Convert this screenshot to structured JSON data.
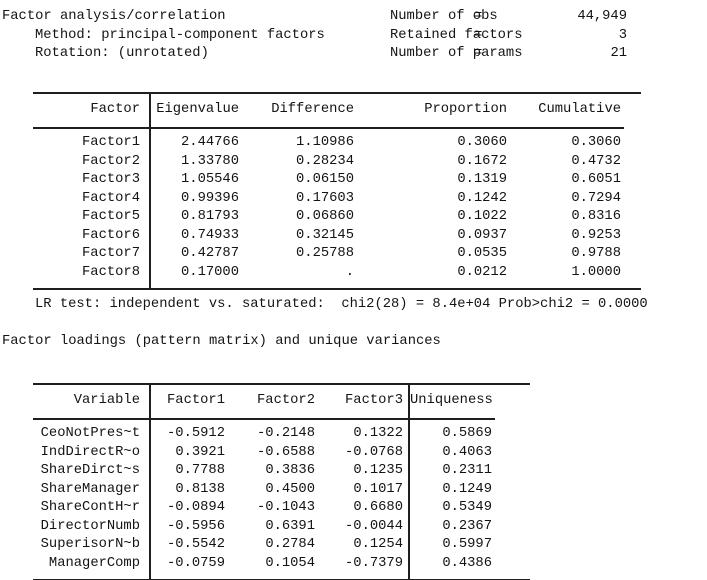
{
  "header": {
    "title": "Factor analysis/correlation",
    "method": "Method: principal-component factors",
    "rotation": "Rotation: (unrotated)",
    "stats": [
      {
        "label": "Number of obs",
        "eq": "=",
        "value": "44,949"
      },
      {
        "label": "Retained factors",
        "eq": "=",
        "value": "3"
      },
      {
        "label": "Number of params",
        "eq": "=",
        "value": "21"
      }
    ]
  },
  "eigen_table": {
    "columns": [
      "Factor",
      "Eigenvalue",
      "Difference",
      "Proportion",
      "Cumulative"
    ],
    "rows": [
      {
        "factor": "Factor1",
        "eigenvalue": "2.44766",
        "difference": "1.10986",
        "proportion": "0.3060",
        "cumulative": "0.3060"
      },
      {
        "factor": "Factor2",
        "eigenvalue": "1.33780",
        "difference": "0.28234",
        "proportion": "0.1672",
        "cumulative": "0.4732"
      },
      {
        "factor": "Factor3",
        "eigenvalue": "1.05546",
        "difference": "0.06150",
        "proportion": "0.1319",
        "cumulative": "0.6051"
      },
      {
        "factor": "Factor4",
        "eigenvalue": "0.99396",
        "difference": "0.17603",
        "proportion": "0.1242",
        "cumulative": "0.7294"
      },
      {
        "factor": "Factor5",
        "eigenvalue": "0.81793",
        "difference": "0.06860",
        "proportion": "0.1022",
        "cumulative": "0.8316"
      },
      {
        "factor": "Factor6",
        "eigenvalue": "0.74933",
        "difference": "0.32145",
        "proportion": "0.0937",
        "cumulative": "0.9253"
      },
      {
        "factor": "Factor7",
        "eigenvalue": "0.42787",
        "difference": "0.25788",
        "proportion": "0.0535",
        "cumulative": "0.9788"
      },
      {
        "factor": "Factor8",
        "eigenvalue": "0.17000",
        "difference": ".",
        "proportion": "0.0212",
        "cumulative": "1.0000"
      }
    ]
  },
  "lr_test": "LR test: independent vs. saturated:  chi2(28) = 8.4e+04 Prob>chi2 = 0.0000",
  "loadings": {
    "caption": "Factor loadings (pattern matrix) and unique variances",
    "columns": [
      "Variable",
      "Factor1",
      "Factor2",
      "Factor3",
      "Uniqueness"
    ],
    "rows": [
      {
        "variable": "CeoNotPres~t",
        "f1": "-0.5912",
        "f2": "-0.2148",
        "f3": "0.1322",
        "uniqueness": "0.5869"
      },
      {
        "variable": "IndDirectR~o",
        "f1": "0.3921",
        "f2": "-0.6588",
        "f3": "-0.0768",
        "uniqueness": "0.4063"
      },
      {
        "variable": "ShareDirct~s",
        "f1": "0.7788",
        "f2": "0.3836",
        "f3": "0.1235",
        "uniqueness": "0.2311"
      },
      {
        "variable": "ShareManager",
        "f1": "0.8138",
        "f2": "0.4500",
        "f3": "0.1017",
        "uniqueness": "0.1249"
      },
      {
        "variable": "ShareContH~r",
        "f1": "-0.0894",
        "f2": "-0.1043",
        "f3": "0.6680",
        "uniqueness": "0.5349"
      },
      {
        "variable": "DirectorNumb",
        "f1": "-0.5956",
        "f2": "0.6391",
        "f3": "-0.0044",
        "uniqueness": "0.2367"
      },
      {
        "variable": "SuperisorN~b",
        "f1": "-0.5542",
        "f2": "0.2784",
        "f3": "0.1254",
        "uniqueness": "0.5997"
      },
      {
        "variable": "ManagerComp",
        "f1": "-0.0759",
        "f2": "0.1054",
        "f3": "-0.7379",
        "uniqueness": "0.4386"
      }
    ]
  }
}
